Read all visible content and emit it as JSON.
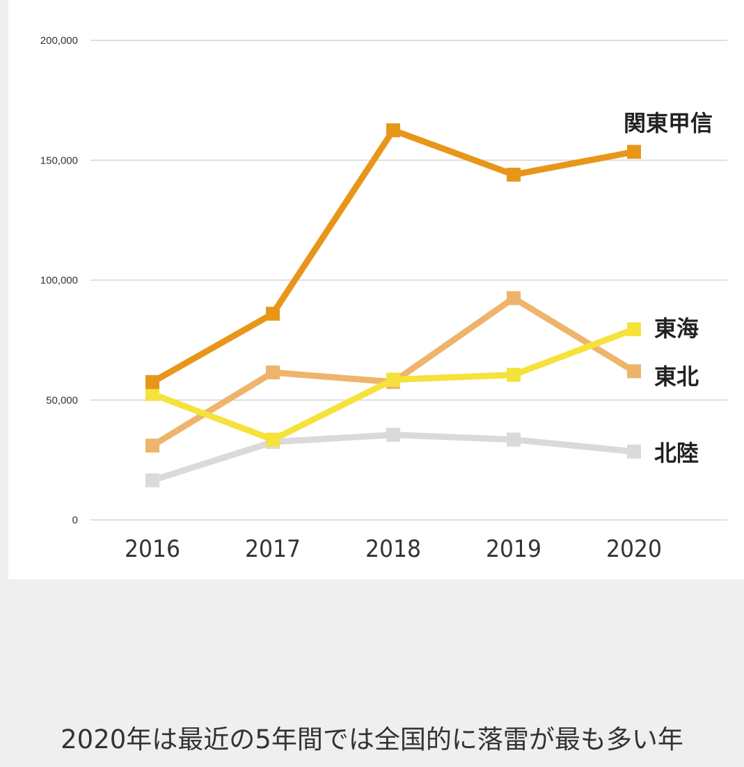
{
  "chart_data": {
    "type": "line",
    "title": "",
    "xlabel": "",
    "ylabel": "",
    "categories": [
      "2016",
      "2017",
      "2018",
      "2019",
      "2020"
    ],
    "ylim": [
      0,
      200000
    ],
    "yticks": [
      0,
      50000,
      100000,
      150000,
      200000
    ],
    "ytick_labels": [
      "0",
      "50,000",
      "100,000",
      "150,000",
      "200,000"
    ],
    "grid": true,
    "legend": "inline-right",
    "series": [
      {
        "name": "北陸",
        "color": "#dadada",
        "values": [
          16500,
          32500,
          35500,
          33500,
          28500
        ]
      },
      {
        "name": "東北",
        "color": "#eeb46c",
        "values": [
          31000,
          61500,
          57500,
          92500,
          62000
        ]
      },
      {
        "name": "東海",
        "color": "#f5e23a",
        "values": [
          52500,
          33500,
          58500,
          60500,
          79500
        ]
      },
      {
        "name": "関東甲信",
        "color": "#e8961a",
        "values": [
          57500,
          86000,
          162500,
          144000,
          153500
        ]
      }
    ]
  },
  "caption": "2020年は最近の5年間では全国的に落雷が最も多い年"
}
